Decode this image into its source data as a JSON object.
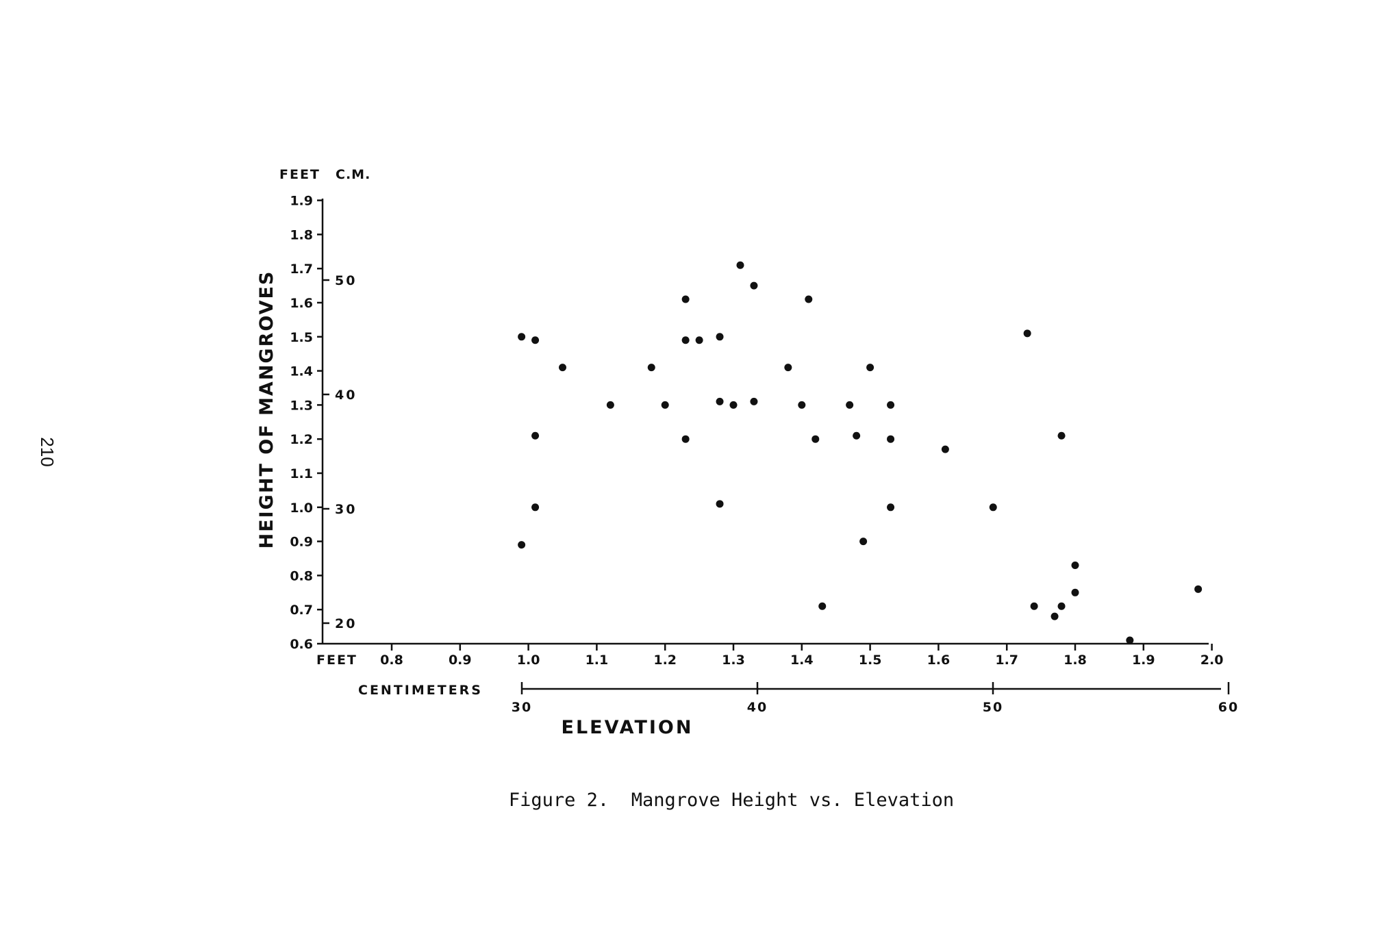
{
  "page_number": "210",
  "caption": "Figure 2.  Mangrove Height vs. Elevation",
  "chart_data": {
    "type": "scatter",
    "title": "",
    "ylabel": "HEIGHT OF MANGROVES",
    "xlabel": "ELEVATION",
    "y_unit_feet": "FEET",
    "y_unit_cm": "C.M.",
    "x_unit_feet": "FEET",
    "x_unit_cm": "CENTIMETERS",
    "xlim": [
      0.6,
      2.0
    ],
    "ylim": [
      0.6,
      1.9
    ],
    "x_ticks_feet": [
      "0.8",
      "0.9",
      "1.0",
      "1.1",
      "1.2",
      "1.3",
      "1.4",
      "1.5",
      "1.6",
      "1.7",
      "1.8",
      "1.9",
      "2.0"
    ],
    "x_ticks_cm": [
      "30",
      "40",
      "50",
      "60"
    ],
    "y_ticks_feet": [
      "0.6",
      "0.7",
      "0.8",
      "0.9",
      "1.0",
      "1.1",
      "1.2",
      "1.3",
      "1.4",
      "1.5",
      "1.6",
      "1.7",
      "1.8",
      "1.9"
    ],
    "y_ticks_cm": [
      "20",
      "30",
      "40",
      "50"
    ],
    "grid": false,
    "legend": "none",
    "points": [
      {
        "x": 0.99,
        "y": 1.5
      },
      {
        "x": 1.01,
        "y": 1.49
      },
      {
        "x": 0.99,
        "y": 0.89
      },
      {
        "x": 1.01,
        "y": 1.21
      },
      {
        "x": 1.01,
        "y": 1.0
      },
      {
        "x": 1.05,
        "y": 1.41
      },
      {
        "x": 1.12,
        "y": 1.3
      },
      {
        "x": 1.18,
        "y": 1.41
      },
      {
        "x": 1.2,
        "y": 1.3
      },
      {
        "x": 1.23,
        "y": 1.61
      },
      {
        "x": 1.23,
        "y": 1.49
      },
      {
        "x": 1.25,
        "y": 1.49
      },
      {
        "x": 1.23,
        "y": 1.2
      },
      {
        "x": 1.28,
        "y": 1.5
      },
      {
        "x": 1.28,
        "y": 1.31
      },
      {
        "x": 1.28,
        "y": 1.01
      },
      {
        "x": 1.3,
        "y": 1.3
      },
      {
        "x": 1.31,
        "y": 1.71
      },
      {
        "x": 1.33,
        "y": 1.65
      },
      {
        "x": 1.33,
        "y": 1.31
      },
      {
        "x": 1.38,
        "y": 1.41
      },
      {
        "x": 1.4,
        "y": 1.3
      },
      {
        "x": 1.41,
        "y": 1.61
      },
      {
        "x": 1.42,
        "y": 1.2
      },
      {
        "x": 1.43,
        "y": 0.71
      },
      {
        "x": 1.47,
        "y": 1.3
      },
      {
        "x": 1.48,
        "y": 1.21
      },
      {
        "x": 1.49,
        "y": 0.9
      },
      {
        "x": 1.5,
        "y": 1.41
      },
      {
        "x": 1.53,
        "y": 1.3
      },
      {
        "x": 1.53,
        "y": 1.2
      },
      {
        "x": 1.53,
        "y": 1.0
      },
      {
        "x": 1.61,
        "y": 1.17
      },
      {
        "x": 1.68,
        "y": 1.0
      },
      {
        "x": 1.73,
        "y": 1.51
      },
      {
        "x": 1.74,
        "y": 0.71
      },
      {
        "x": 1.77,
        "y": 0.68
      },
      {
        "x": 1.78,
        "y": 0.71
      },
      {
        "x": 1.78,
        "y": 1.21
      },
      {
        "x": 1.8,
        "y": 0.75
      },
      {
        "x": 1.8,
        "y": 0.83
      },
      {
        "x": 1.88,
        "y": 0.61
      },
      {
        "x": 1.98,
        "y": 0.76
      }
    ]
  }
}
